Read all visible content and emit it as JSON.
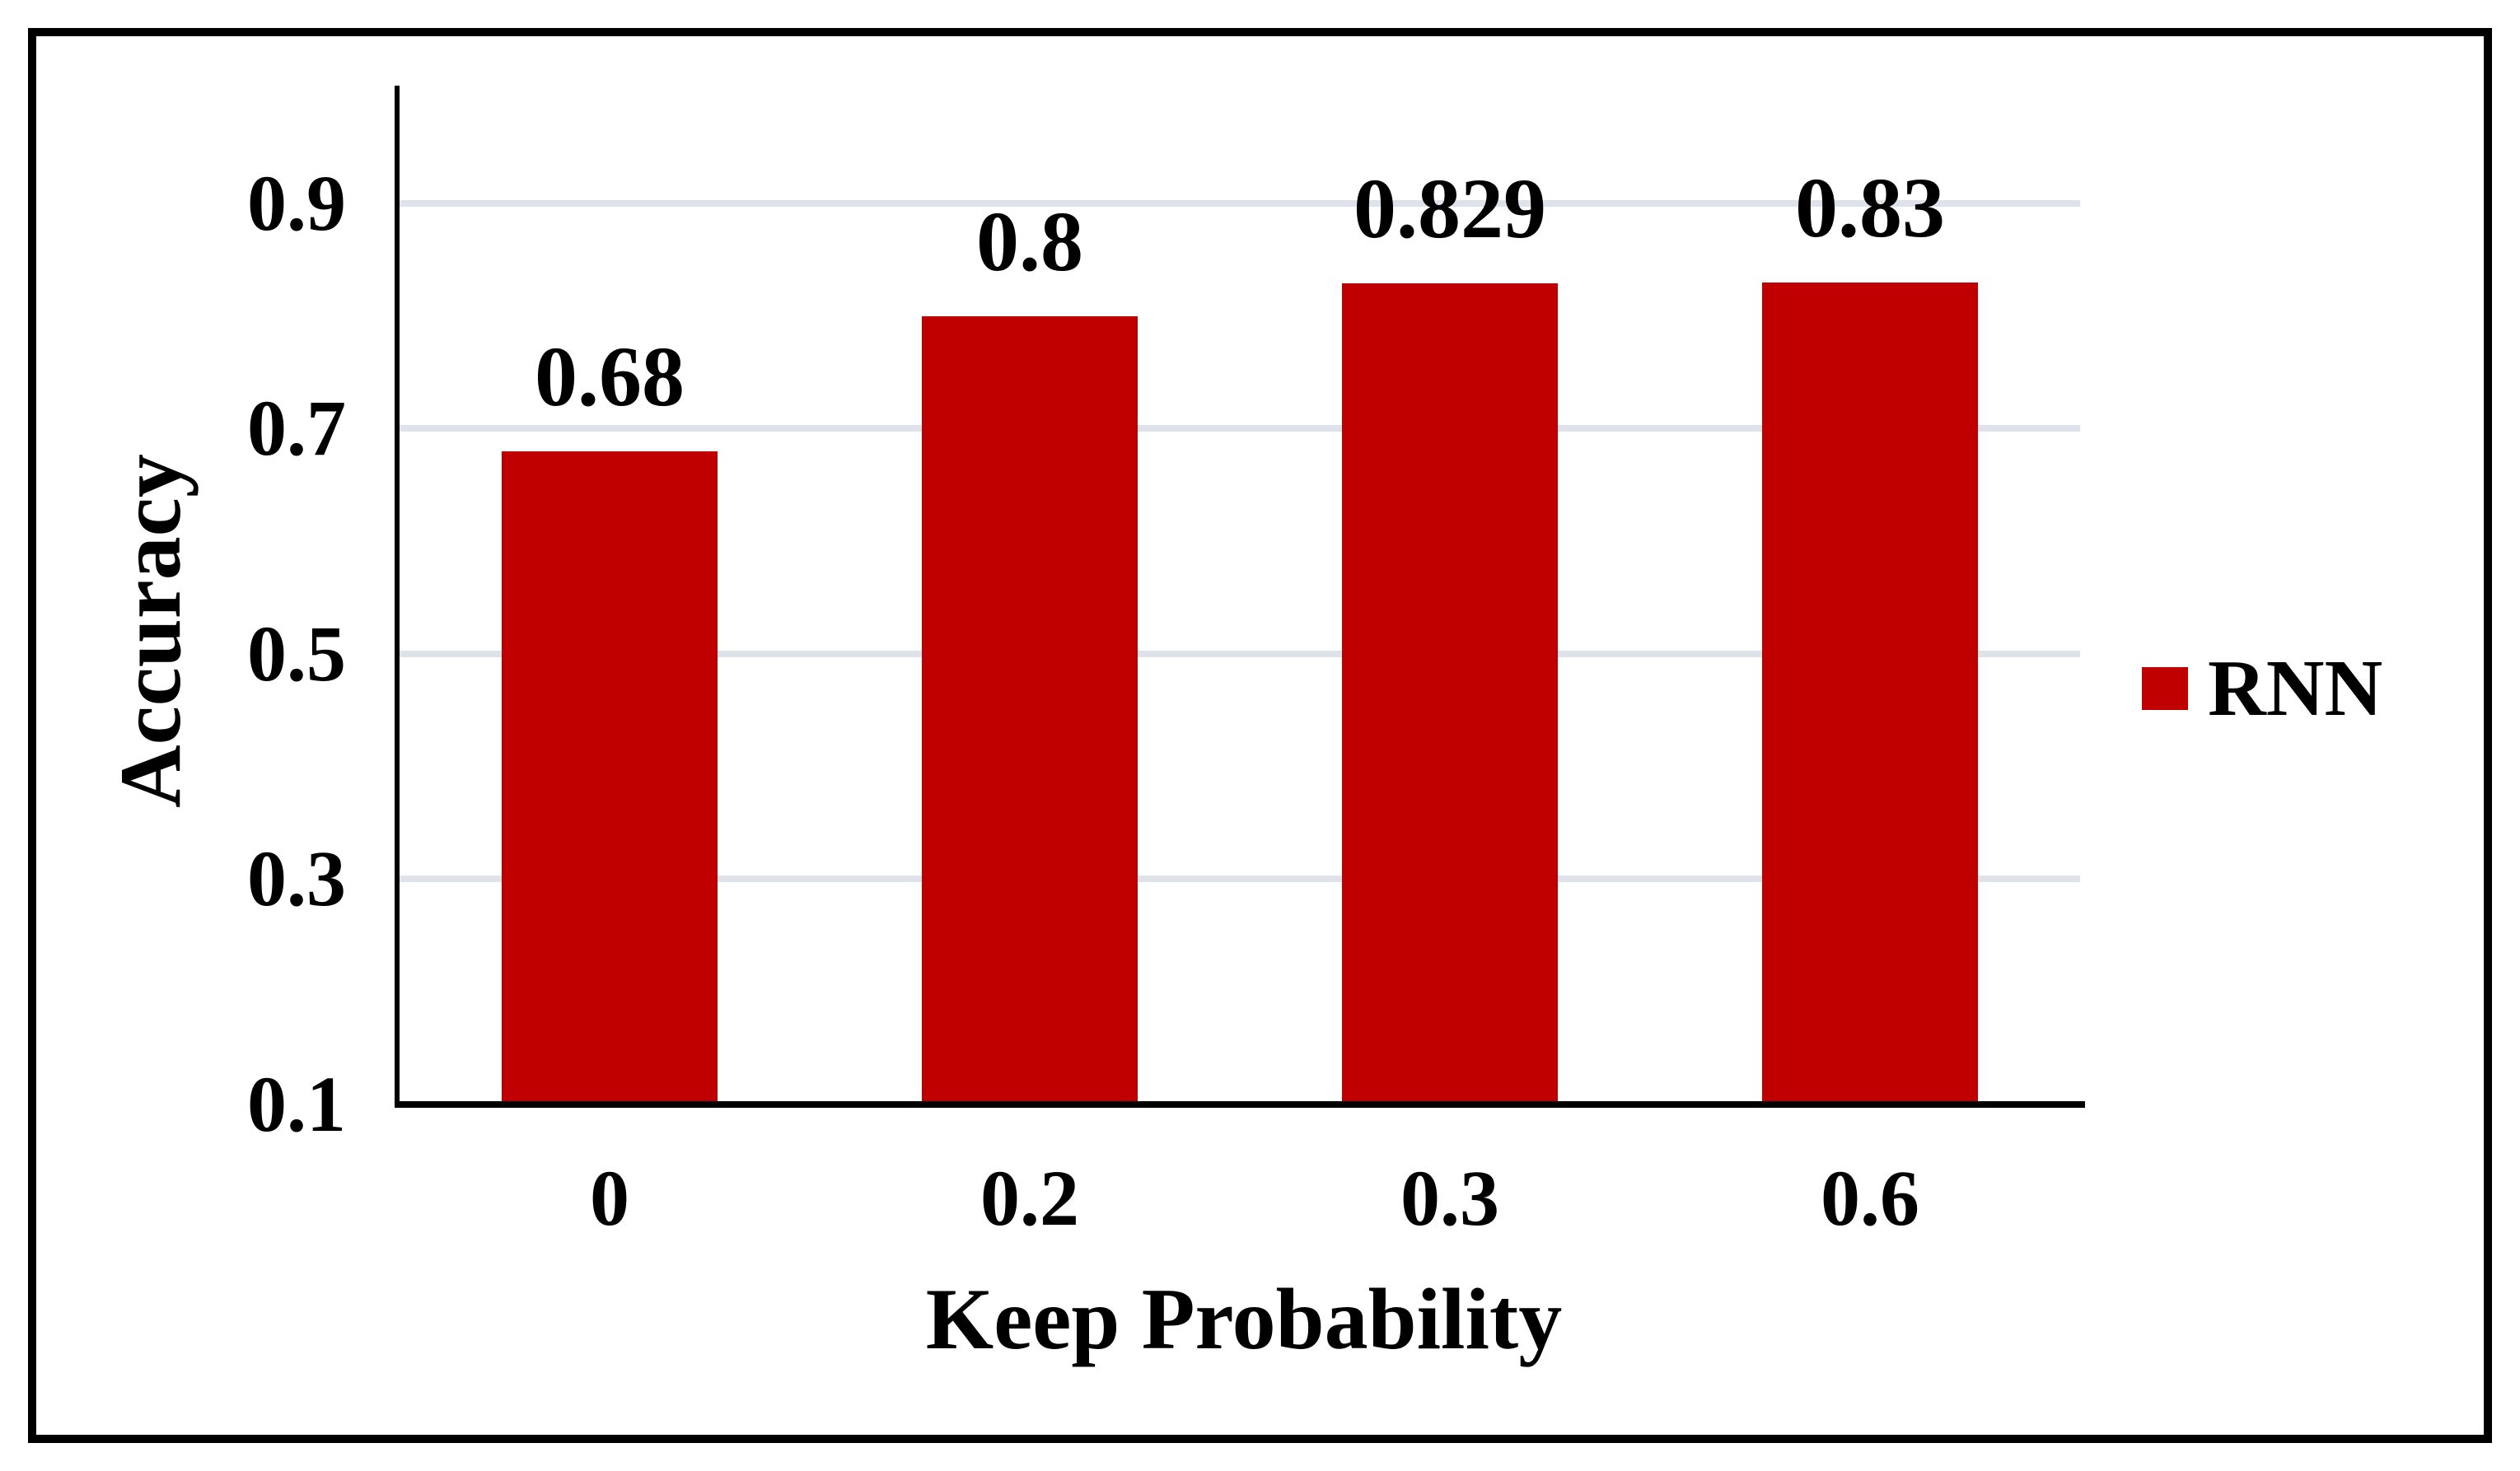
{
  "chart_data": {
    "type": "bar",
    "categories": [
      "0",
      "0.2",
      "0.3",
      "0.6"
    ],
    "series": [
      {
        "name": "RNN",
        "values": [
          0.68,
          0.8,
          0.829,
          0.83
        ]
      }
    ],
    "data_labels": [
      "0.68",
      "0.8",
      "0.829",
      "0.83"
    ],
    "title": "",
    "xlabel": "Keep Probability",
    "ylabel": "Accuracy",
    "ylim": [
      0.1,
      1.0
    ],
    "yticks": [
      0.1,
      0.3,
      0.5,
      0.7,
      0.9
    ],
    "ytick_labels": [
      "0.1",
      "0.3",
      "0.5",
      "0.7",
      "0.9"
    ],
    "grid": true,
    "legend_position": "right",
    "colors": {
      "bar": "#C00000",
      "gridline": "#DEE3EB",
      "axis": "#000000",
      "text": "#000000",
      "background": "#FFFFFF",
      "figure_border": "#000000"
    }
  },
  "legend": {
    "items": [
      {
        "label": "RNN",
        "color": "#C00000"
      }
    ]
  }
}
